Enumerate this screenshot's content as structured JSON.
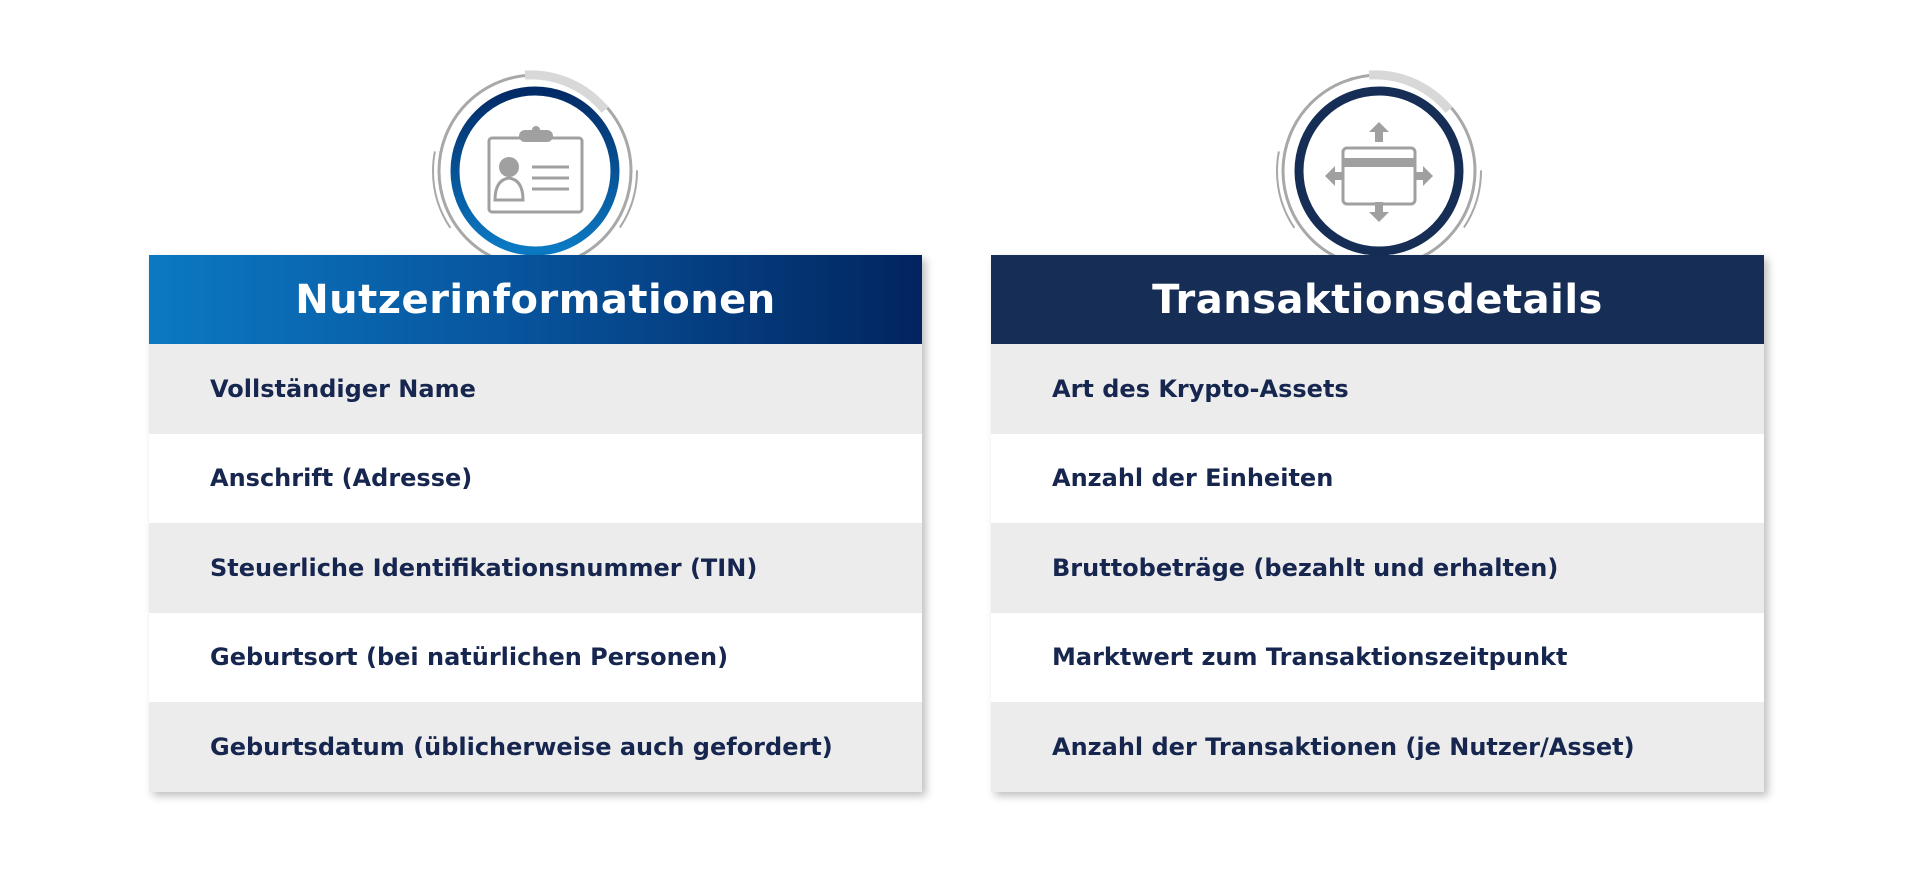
{
  "colors": {
    "left_header_gradient": [
      "#0b79c2",
      "#02245f"
    ],
    "right_header": "#162e56",
    "text": "#16264f",
    "row_alt": "#ececec",
    "icon_gray": "#a0a0a0"
  },
  "left": {
    "icon": "id-card-icon",
    "title": "Nutzerinformationen",
    "items": [
      "Vollständiger Name",
      "Anschrift (Adresse)",
      "Steuerliche Identifikationsnummer (TIN)",
      "Geburtsort (bei natürlichen Personen)",
      "Geburtsdatum (üblicherweise auch gefordert)"
    ]
  },
  "right": {
    "icon": "card-transfer-icon",
    "title": "Transaktionsdetails",
    "items": [
      "Art des Krypto-Assets",
      "Anzahl der Einheiten",
      "Bruttobeträge (bezahlt und erhalten)",
      "Marktwert zum Transaktionszeitpunkt",
      "Anzahl der Transaktionen (je Nutzer/Asset)"
    ]
  }
}
